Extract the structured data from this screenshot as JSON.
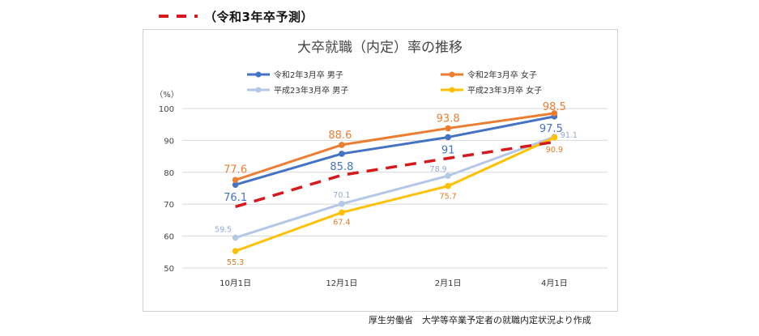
{
  "top_legend": {
    "label": "（令和3年卒予測）",
    "line_color": "#d7191c"
  },
  "source_note": "厚生労働省　大学等卒業予定者の就職内定状況より作成",
  "chart_data": {
    "type": "line",
    "title": "大卒就職（内定）率の推移",
    "y_unit_label": "（%）",
    "categories": [
      "10月1日",
      "12月1日",
      "2月1日",
      "4月1日"
    ],
    "ylim": [
      50,
      100
    ],
    "yticks": [
      "50",
      "60",
      "70",
      "80",
      "90",
      "100"
    ],
    "grid": true,
    "legend_position": "top",
    "series": [
      {
        "name": "令和2年3月卒 男子",
        "values": [
          76.1,
          85.8,
          91,
          97.5
        ],
        "labels": [
          "76.1",
          "85.8",
          "91",
          "97.5"
        ],
        "color": "#4472c4",
        "label_color": "#4472c4",
        "label_size": "large"
      },
      {
        "name": "令和2年3月卒 女子",
        "values": [
          77.6,
          88.6,
          93.8,
          98.5
        ],
        "labels": [
          "77.6",
          "88.6",
          "93.8",
          "98.5"
        ],
        "color": "#ed7d31",
        "label_color": "#ed7d31",
        "label_size": "large"
      },
      {
        "name": "平成23年3月卒 男子",
        "values": [
          59.5,
          70.1,
          78.9,
          91.1
        ],
        "labels": [
          "59.5",
          "70.1",
          "78.9",
          "91.1"
        ],
        "color": "#b4c7e7",
        "label_color": "#8ea9db",
        "label_size": "small"
      },
      {
        "name": "平成23年3月卒 女子",
        "values": [
          55.3,
          67.4,
          75.7,
          90.9
        ],
        "labels": [
          "55.3",
          "67.4",
          "75.7",
          "90.9"
        ],
        "color": "#ffc000",
        "label_color": "#e07820",
        "label_size": "small"
      }
    ],
    "forecast": {
      "values": [
        69.2,
        79.1,
        84.4,
        89.5
      ],
      "color": "#d7191c",
      "style": "dashed"
    }
  }
}
